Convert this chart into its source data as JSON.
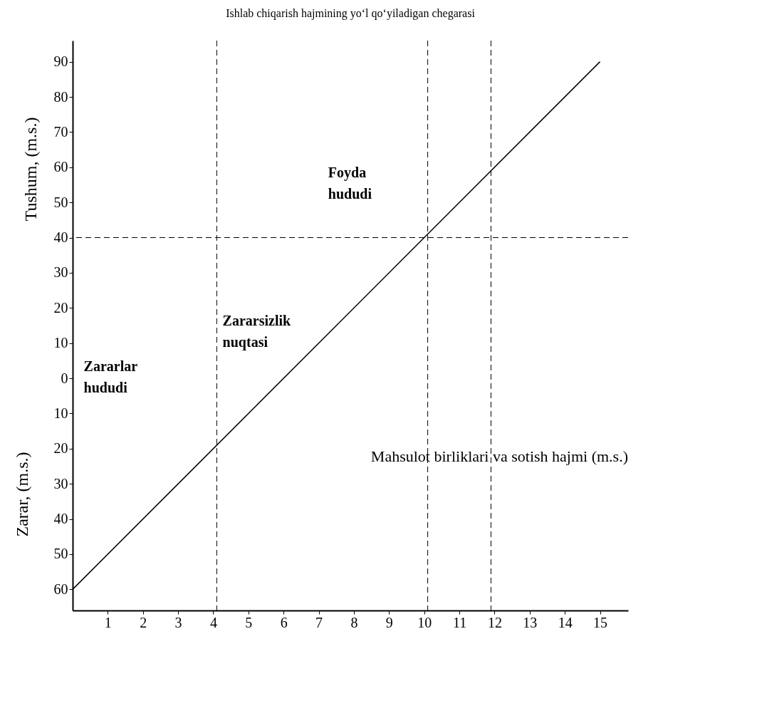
{
  "chart_data": {
    "type": "line",
    "title": "Ishlab chiqarish hajmining yo‘l qo‘yiladigan chegarasi",
    "xlabel": "Mahsulot birliklari va sotish hajmi (m.s.)",
    "ylabel": "Tushum, (m.s.)",
    "x": [
      0,
      15
    ],
    "series": [
      {
        "color": "#000000",
        "values": [
          -60,
          90
        ]
      }
    ],
    "xlim": [
      0,
      15.8
    ],
    "xticks": [
      1,
      2,
      3,
      4,
      5,
      6,
      7,
      8,
      9,
      10,
      11,
      12,
      13,
      14,
      15
    ],
    "ylim": [
      -66,
      96
    ],
    "yticks": [
      90,
      80,
      70,
      60,
      50,
      40,
      30,
      20,
      10,
      0,
      {
        "value": -10,
        "label": "10"
      },
      {
        "value": -20,
        "label": "20"
      },
      {
        "value": -30,
        "label": "30"
      },
      {
        "value": -40,
        "label": "40"
      },
      {
        "value": -50,
        "label": "50"
      },
      {
        "value": -60,
        "label": "60"
      }
    ],
    "grid": false,
    "marker": "none",
    "line_style": "solid",
    "ref_lines": [
      {
        "axis": "x",
        "value": 4.1,
        "line_style": "dashed"
      },
      {
        "axis": "x",
        "value": 11.9,
        "line_style": "dashed"
      },
      {
        "axis": "x",
        "value": 10.1,
        "line_style": "dashed"
      },
      {
        "axis": "y",
        "value": 40,
        "line_style": "dashed"
      }
    ],
    "annotations": [
      "Foyda\nhududi",
      "Zararsizlik\nnuqtasi",
      "Zararlar\nhududi",
      "Zarar, (m.s.)"
    ]
  }
}
